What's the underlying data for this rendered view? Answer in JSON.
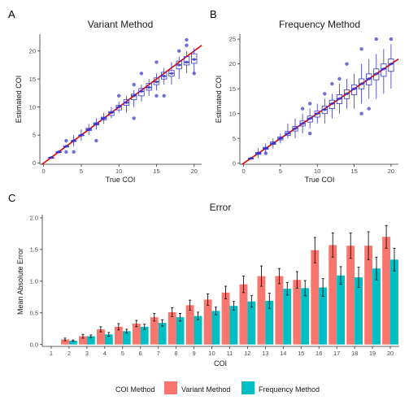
{
  "panel_tags": [
    "A",
    "B",
    "C"
  ],
  "legend": {
    "title": "COI Method",
    "items": [
      {
        "label": "Variant Method",
        "color": "#F8766D"
      },
      {
        "label": "Frequency Method",
        "color": "#00BFC4"
      }
    ]
  },
  "chart_data": [
    {
      "type": "boxplot",
      "title": "Variant Method",
      "xlabel": "True COI",
      "ylabel": "Estimated COI",
      "xlim": [
        -0.5,
        21
      ],
      "ylim": [
        -0.2,
        23
      ],
      "xticks": [
        0,
        5,
        10,
        15,
        20
      ],
      "yticks": [
        0,
        5,
        10,
        15,
        20
      ],
      "reference_line": {
        "slope": 1,
        "intercept": 0,
        "color": "#e00000"
      },
      "box_color": "#3333cc",
      "boxes": [
        {
          "x": 1,
          "min": 1,
          "q1": 1,
          "median": 1,
          "q3": 1,
          "max": 1,
          "outliers": []
        },
        {
          "x": 2,
          "min": 2,
          "q1": 2,
          "median": 2,
          "q3": 2,
          "max": 2,
          "outliers": []
        },
        {
          "x": 3,
          "min": 3,
          "q1": 3,
          "median": 3,
          "q3": 3,
          "max": 3,
          "outliers": [
            2,
            4
          ]
        },
        {
          "x": 4,
          "min": 3,
          "q1": 4,
          "median": 4,
          "q3": 4,
          "max": 5,
          "outliers": [
            2
          ]
        },
        {
          "x": 5,
          "min": 4,
          "q1": 5,
          "median": 5,
          "q3": 5,
          "max": 6,
          "outliers": []
        },
        {
          "x": 6,
          "min": 5,
          "q1": 5.8,
          "median": 6,
          "q3": 6.2,
          "max": 7,
          "outliers": []
        },
        {
          "x": 7,
          "min": 6,
          "q1": 6.8,
          "median": 7,
          "q3": 7.2,
          "max": 8,
          "outliers": [
            4
          ]
        },
        {
          "x": 8,
          "min": 7,
          "q1": 7.7,
          "median": 8,
          "q3": 8.2,
          "max": 9,
          "outliers": []
        },
        {
          "x": 9,
          "min": 8,
          "q1": 8.5,
          "median": 9,
          "q3": 9.2,
          "max": 10,
          "outliers": []
        },
        {
          "x": 10,
          "min": 9,
          "q1": 9.5,
          "median": 10,
          "q3": 10.3,
          "max": 11,
          "outliers": [
            12
          ]
        },
        {
          "x": 11,
          "min": 9,
          "q1": 10.3,
          "median": 10.8,
          "q3": 11.3,
          "max": 12,
          "outliers": []
        },
        {
          "x": 12,
          "min": 10,
          "q1": 11.3,
          "median": 12,
          "q3": 12.3,
          "max": 13,
          "outliers": [
            8,
            14
          ]
        },
        {
          "x": 13,
          "min": 11,
          "q1": 12,
          "median": 12.8,
          "q3": 13.3,
          "max": 14,
          "outliers": [
            16
          ]
        },
        {
          "x": 14,
          "min": 12,
          "q1": 13,
          "median": 13.5,
          "q3": 14.2,
          "max": 15,
          "outliers": []
        },
        {
          "x": 15,
          "min": 13,
          "q1": 14,
          "median": 14.5,
          "q3": 15.2,
          "max": 16,
          "outliers": [
            12,
            18
          ]
        },
        {
          "x": 16,
          "min": 14,
          "q1": 15,
          "median": 15.5,
          "q3": 16.2,
          "max": 17,
          "outliers": [
            12
          ]
        },
        {
          "x": 17,
          "min": 14,
          "q1": 15.5,
          "median": 16,
          "q3": 16.5,
          "max": 18,
          "outliers": []
        },
        {
          "x": 18,
          "min": 15,
          "q1": 16.8,
          "median": 17.5,
          "q3": 18.2,
          "max": 19,
          "outliers": [
            20
          ]
        },
        {
          "x": 19,
          "min": 16,
          "q1": 17.5,
          "median": 18,
          "q3": 19,
          "max": 20,
          "outliers": [
            21,
            22
          ]
        },
        {
          "x": 20,
          "min": 16,
          "q1": 17.8,
          "median": 18.5,
          "q3": 19.5,
          "max": 20.5,
          "outliers": [
            16
          ]
        }
      ]
    },
    {
      "type": "boxplot",
      "title": "Frequency Method",
      "xlabel": "True COI",
      "ylabel": "Estimated COI",
      "xlim": [
        -0.5,
        21
      ],
      "ylim": [
        -0.2,
        26
      ],
      "xticks": [
        0,
        5,
        10,
        15,
        20
      ],
      "yticks": [
        0,
        5,
        10,
        15,
        20,
        25
      ],
      "reference_line": {
        "slope": 1,
        "intercept": 0,
        "color": "#e00000"
      },
      "box_color": "#3333cc",
      "boxes": [
        {
          "x": 1,
          "min": 1,
          "q1": 1,
          "median": 1,
          "q3": 1,
          "max": 1,
          "outliers": []
        },
        {
          "x": 2,
          "min": 1,
          "q1": 1.8,
          "median": 2,
          "q3": 2.2,
          "max": 3,
          "outliers": []
        },
        {
          "x": 3,
          "min": 2,
          "q1": 2.8,
          "median": 3,
          "q3": 3.2,
          "max": 4,
          "outliers": [
            2
          ]
        },
        {
          "x": 4,
          "min": 3,
          "q1": 3.8,
          "median": 4,
          "q3": 4.3,
          "max": 5,
          "outliers": []
        },
        {
          "x": 5,
          "min": 4,
          "q1": 4.7,
          "median": 5,
          "q3": 5.3,
          "max": 6,
          "outliers": []
        },
        {
          "x": 6,
          "min": 5,
          "q1": 5.6,
          "median": 6,
          "q3": 6.4,
          "max": 8,
          "outliers": []
        },
        {
          "x": 7,
          "min": 5,
          "q1": 6.5,
          "median": 7,
          "q3": 7.4,
          "max": 9,
          "outliers": []
        },
        {
          "x": 8,
          "min": 6,
          "q1": 7.5,
          "median": 8,
          "q3": 8.5,
          "max": 10,
          "outliers": [
            11
          ]
        },
        {
          "x": 9,
          "min": 7,
          "q1": 8.3,
          "median": 9,
          "q3": 9.5,
          "max": 11,
          "outliers": [
            6,
            12
          ]
        },
        {
          "x": 10,
          "min": 8,
          "q1": 9.3,
          "median": 10,
          "q3": 10.5,
          "max": 12,
          "outliers": []
        },
        {
          "x": 11,
          "min": 8,
          "q1": 10,
          "median": 10.8,
          "q3": 11.5,
          "max": 13,
          "outliers": [
            14
          ]
        },
        {
          "x": 12,
          "min": 9,
          "q1": 11,
          "median": 12,
          "q3": 12.7,
          "max": 14,
          "outliers": [
            16
          ]
        },
        {
          "x": 13,
          "min": 10,
          "q1": 12,
          "median": 13,
          "q3": 13.8,
          "max": 16,
          "outliers": [
            17
          ]
        },
        {
          "x": 14,
          "min": 11,
          "q1": 13,
          "median": 14,
          "q3": 14.8,
          "max": 17,
          "outliers": [
            20
          ]
        },
        {
          "x": 15,
          "min": 11,
          "q1": 13.8,
          "median": 15,
          "q3": 15.8,
          "max": 18,
          "outliers": []
        },
        {
          "x": 16,
          "min": 12,
          "q1": 15,
          "median": 16,
          "q3": 17,
          "max": 20,
          "outliers": [
            10,
            23
          ]
        },
        {
          "x": 17,
          "min": 13,
          "q1": 15.8,
          "median": 17,
          "q3": 18,
          "max": 21,
          "outliers": [
            11
          ]
        },
        {
          "x": 18,
          "min": 13,
          "q1": 16.8,
          "median": 18,
          "q3": 19,
          "max": 22,
          "outliers": [
            25
          ]
        },
        {
          "x": 19,
          "min": 14,
          "q1": 17.5,
          "median": 19,
          "q3": 20,
          "max": 23,
          "outliers": []
        },
        {
          "x": 20,
          "min": 15,
          "q1": 18.5,
          "median": 20,
          "q3": 21,
          "max": 24,
          "outliers": [
            25
          ]
        }
      ]
    },
    {
      "type": "bar",
      "title": "Error",
      "xlabel": "COI",
      "ylabel": "Mean Absolute Error",
      "ylim": [
        -0.03,
        2.05
      ],
      "yticks": [
        0.0,
        0.5,
        1.0,
        1.5,
        2.0
      ],
      "categories": [
        "1",
        "2",
        "3",
        "4",
        "5",
        "6",
        "7",
        "8",
        "9",
        "10",
        "11",
        "12",
        "13",
        "14",
        "15",
        "16",
        "17",
        "18",
        "19",
        "20"
      ],
      "series": [
        {
          "name": "Variant Method",
          "color": "#F8766D",
          "values": [
            0,
            0.08,
            0.13,
            0.24,
            0.28,
            0.33,
            0.43,
            0.51,
            0.62,
            0.71,
            0.82,
            0.95,
            1.08,
            1.08,
            1.02,
            1.49,
            1.57,
            1.56,
            1.56,
            1.7
          ],
          "errors": [
            0,
            0.02,
            0.03,
            0.04,
            0.05,
            0.05,
            0.06,
            0.07,
            0.08,
            0.09,
            0.1,
            0.13,
            0.16,
            0.12,
            0.13,
            0.2,
            0.19,
            0.2,
            0.22,
            0.18
          ]
        },
        {
          "name": "Frequency Method",
          "color": "#00BFC4",
          "values": [
            0,
            0.06,
            0.13,
            0.16,
            0.21,
            0.28,
            0.34,
            0.43,
            0.45,
            0.53,
            0.61,
            0.68,
            0.69,
            0.88,
            0.89,
            0.9,
            1.09,
            1.06,
            1.2,
            1.34
          ],
          "errors": [
            0,
            0.01,
            0.02,
            0.03,
            0.03,
            0.04,
            0.05,
            0.06,
            0.06,
            0.06,
            0.07,
            0.09,
            0.12,
            0.1,
            0.12,
            0.14,
            0.14,
            0.16,
            0.18,
            0.18
          ]
        }
      ]
    }
  ]
}
